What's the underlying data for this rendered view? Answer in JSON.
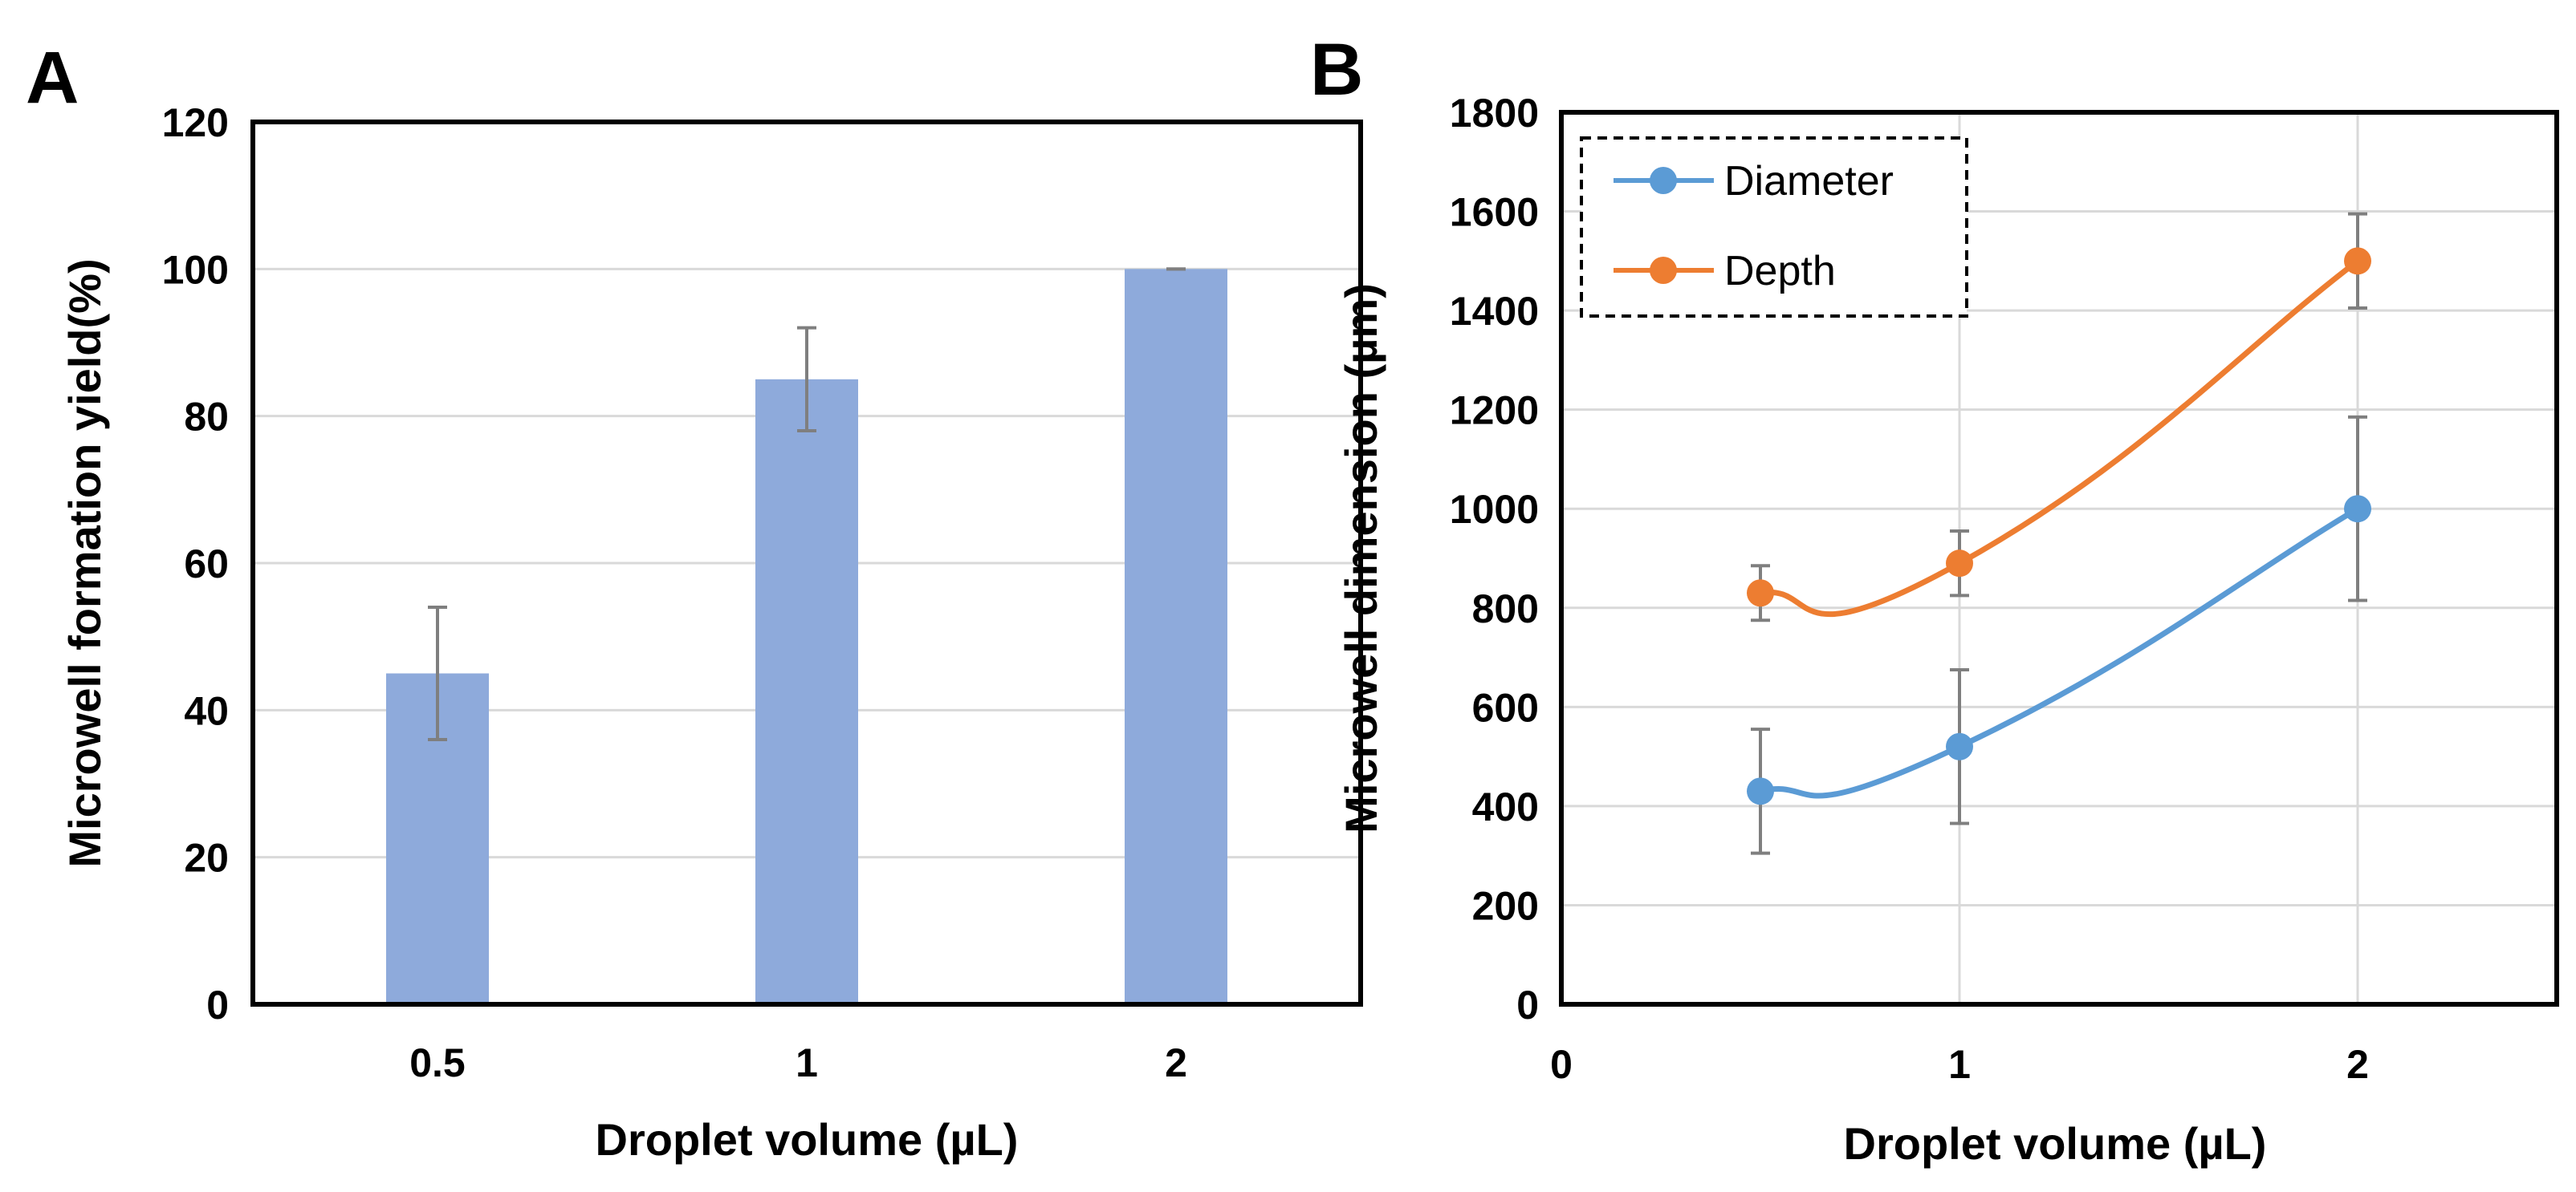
{
  "chart_data": [
    {
      "panel_label": "A",
      "type": "bar",
      "categories": [
        "0.5",
        "1",
        "2"
      ],
      "series": [
        {
          "name": "Microwell formation yield",
          "values": [
            45,
            85,
            100
          ],
          "errors": [
            9,
            7,
            0
          ],
          "color": "#8eaadb"
        }
      ],
      "xlabel": "Droplet volume (µL)",
      "ylabel": "Microwell formation yield(%)",
      "ylim": [
        0,
        120
      ],
      "yticks": [
        0,
        20,
        40,
        60,
        80,
        100,
        120
      ],
      "grid": true,
      "error_bar_color": "#7f7f7f"
    },
    {
      "panel_label": "B",
      "type": "line",
      "x": [
        0.5,
        1,
        2
      ],
      "series": [
        {
          "name": "Diameter",
          "values": [
            430,
            520,
            1000
          ],
          "errors": [
            125,
            155,
            185
          ],
          "color": "#5b9bd5"
        },
        {
          "name": "Depth",
          "values": [
            830,
            890,
            1500
          ],
          "errors": [
            55,
            65,
            95
          ],
          "color": "#ed7d31"
        }
      ],
      "xlabel": "Droplet volume (µL)",
      "ylabel": "Microwell dimension (µm)",
      "xlim": [
        0,
        2.5
      ],
      "xticks": [
        0,
        1,
        2
      ],
      "ylim": [
        0,
        1800
      ],
      "yticks": [
        0,
        200,
        400,
        600,
        800,
        1000,
        1200,
        1400,
        1600,
        1800
      ],
      "grid": true,
      "smooth": true,
      "legend": {
        "placement": "top-left",
        "border": "dashed"
      },
      "error_bar_color": "#7f7f7f"
    }
  ]
}
